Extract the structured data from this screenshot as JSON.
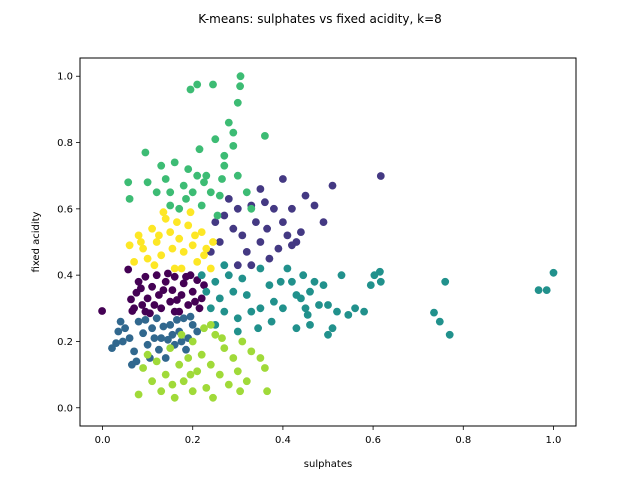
{
  "chart_data": {
    "type": "scatter",
    "title": "K-means: sulphates vs fixed acidity, k=8",
    "xlabel": "sulphates",
    "ylabel": "fixed acidity",
    "xlim": [
      -0.05,
      1.05
    ],
    "ylim": [
      -0.055,
      1.055
    ],
    "xticks": [
      "0.0",
      "0.2",
      "0.4",
      "0.6",
      "0.8",
      "1.0"
    ],
    "yticks": [
      "0.0",
      "0.2",
      "0.4",
      "0.6",
      "0.8",
      "1.0"
    ],
    "grid": false,
    "legend": "none",
    "series": [
      {
        "color": "#440154",
        "points": [
          [
            -0.001,
            0.292
          ],
          [
            0.057,
            0.417
          ],
          [
            0.063,
            0.327
          ],
          [
            0.066,
            0.292
          ],
          [
            0.075,
            0.347
          ],
          [
            0.08,
            0.38
          ],
          [
            0.088,
            0.31
          ],
          [
            0.095,
            0.395
          ],
          [
            0.1,
            0.33
          ],
          [
            0.105,
            0.285
          ],
          [
            0.11,
            0.365
          ],
          [
            0.12,
            0.4
          ],
          [
            0.125,
            0.34
          ],
          [
            0.13,
            0.3
          ],
          [
            0.14,
            0.38
          ],
          [
            0.15,
            0.32
          ],
          [
            0.155,
            0.355
          ],
          [
            0.16,
            0.395
          ],
          [
            0.17,
            0.29
          ],
          [
            0.175,
            0.34
          ],
          [
            0.18,
            0.375
          ],
          [
            0.19,
            0.31
          ],
          [
            0.195,
            0.4
          ],
          [
            0.2,
            0.35
          ],
          [
            0.21,
            0.385
          ],
          [
            0.215,
            0.3
          ],
          [
            0.22,
            0.33
          ],
          [
            0.085,
            0.36
          ],
          [
            0.115,
            0.31
          ],
          [
            0.135,
            0.355
          ],
          [
            0.145,
            0.405
          ],
          [
            0.165,
            0.325
          ],
          [
            0.185,
            0.395
          ],
          [
            0.205,
            0.32
          ],
          [
            0.095,
            0.29
          ],
          [
            0.16,
            0.29
          ],
          [
            0.225,
            0.37
          ],
          [
            0.07,
            0.3
          ]
        ]
      },
      {
        "color": "#443983",
        "points": [
          [
            0.27,
            0.58
          ],
          [
            0.29,
            0.54
          ],
          [
            0.3,
            0.6
          ],
          [
            0.31,
            0.52
          ],
          [
            0.32,
            0.47
          ],
          [
            0.33,
            0.61
          ],
          [
            0.34,
            0.56
          ],
          [
            0.35,
            0.5
          ],
          [
            0.36,
            0.62
          ],
          [
            0.37,
            0.45
          ],
          [
            0.38,
            0.6
          ],
          [
            0.39,
            0.48
          ],
          [
            0.4,
            0.56
          ],
          [
            0.41,
            0.52
          ],
          [
            0.42,
            0.6
          ],
          [
            0.43,
            0.5
          ],
          [
            0.44,
            0.53
          ],
          [
            0.45,
            0.64
          ],
          [
            0.47,
            0.61
          ],
          [
            0.49,
            0.56
          ],
          [
            0.51,
            0.67
          ],
          [
            0.617,
            0.699
          ],
          [
            0.4,
            0.69
          ],
          [
            0.33,
            0.43
          ],
          [
            0.3,
            0.43
          ],
          [
            0.26,
            0.5
          ],
          [
            0.35,
            0.66
          ],
          [
            0.24,
            0.47
          ],
          [
            0.28,
            0.63
          ],
          [
            0.365,
            0.54
          ],
          [
            0.42,
            0.49
          ],
          [
            0.25,
            0.56
          ]
        ]
      },
      {
        "color": "#31688e",
        "points": [
          [
            0.021,
            0.18
          ],
          [
            0.03,
            0.195
          ],
          [
            0.035,
            0.23
          ],
          [
            0.04,
            0.26
          ],
          [
            0.05,
            0.24
          ],
          [
            0.06,
            0.21
          ],
          [
            0.065,
            0.13
          ],
          [
            0.07,
            0.17
          ],
          [
            0.08,
            0.26
          ],
          [
            0.09,
            0.225
          ],
          [
            0.1,
            0.19
          ],
          [
            0.11,
            0.24
          ],
          [
            0.12,
            0.27
          ],
          [
            0.13,
            0.21
          ],
          [
            0.14,
            0.15
          ],
          [
            0.15,
            0.25
          ],
          [
            0.16,
            0.19
          ],
          [
            0.17,
            0.23
          ],
          [
            0.18,
            0.27
          ],
          [
            0.19,
            0.21
          ],
          [
            0.2,
            0.25
          ],
          [
            0.21,
            0.23
          ],
          [
            0.075,
            0.14
          ],
          [
            0.105,
            0.15
          ],
          [
            0.125,
            0.175
          ],
          [
            0.145,
            0.205
          ],
          [
            0.165,
            0.265
          ],
          [
            0.185,
            0.175
          ],
          [
            0.045,
            0.2
          ],
          [
            0.095,
            0.265
          ],
          [
            0.115,
            0.21
          ],
          [
            0.135,
            0.245
          ],
          [
            0.155,
            0.22
          ],
          [
            0.175,
            0.2
          ],
          [
            0.195,
            0.275
          ]
        ]
      },
      {
        "color": "#21918c",
        "points": [
          [
            0.22,
            0.4
          ],
          [
            0.23,
            0.35
          ],
          [
            0.24,
            0.3
          ],
          [
            0.25,
            0.38
          ],
          [
            0.26,
            0.33
          ],
          [
            0.27,
            0.29
          ],
          [
            0.28,
            0.4
          ],
          [
            0.29,
            0.35
          ],
          [
            0.3,
            0.27
          ],
          [
            0.31,
            0.39
          ],
          [
            0.32,
            0.34
          ],
          [
            0.33,
            0.29
          ],
          [
            0.35,
            0.3
          ],
          [
            0.37,
            0.37
          ],
          [
            0.38,
            0.32
          ],
          [
            0.4,
            0.3
          ],
          [
            0.42,
            0.38
          ],
          [
            0.43,
            0.34
          ],
          [
            0.44,
            0.33
          ],
          [
            0.45,
            0.3
          ],
          [
            0.46,
            0.35
          ],
          [
            0.47,
            0.38
          ],
          [
            0.48,
            0.31
          ],
          [
            0.49,
            0.37
          ],
          [
            0.5,
            0.31
          ],
          [
            0.52,
            0.29
          ],
          [
            0.53,
            0.4
          ],
          [
            0.545,
            0.28
          ],
          [
            0.56,
            0.3
          ],
          [
            0.58,
            0.29
          ],
          [
            0.595,
            0.37
          ],
          [
            0.603,
            0.4
          ],
          [
            0.615,
            0.41
          ],
          [
            0.617,
            0.38
          ],
          [
            0.735,
            0.287
          ],
          [
            0.748,
            0.26
          ],
          [
            0.76,
            0.38
          ],
          [
            0.77,
            0.22
          ],
          [
            0.967,
            0.355
          ],
          [
            0.985,
            0.355
          ],
          [
            1.0,
            0.407
          ],
          [
            0.41,
            0.42
          ],
          [
            0.46,
            0.25
          ],
          [
            0.43,
            0.24
          ],
          [
            0.375,
            0.26
          ],
          [
            0.345,
            0.24
          ],
          [
            0.395,
            0.38
          ],
          [
            0.5,
            0.22
          ],
          [
            0.25,
            0.25
          ],
          [
            0.3,
            0.23
          ],
          [
            0.35,
            0.42
          ],
          [
            0.27,
            0.43
          ],
          [
            0.51,
            0.24
          ],
          [
            0.455,
            0.28
          ],
          [
            0.445,
            0.4
          ]
        ]
      },
      {
        "color": "#3dbc74",
        "points": [
          [
            0.057,
            0.68
          ],
          [
            0.06,
            0.63
          ],
          [
            0.095,
            0.77
          ],
          [
            0.1,
            0.68
          ],
          [
            0.12,
            0.65
          ],
          [
            0.13,
            0.73
          ],
          [
            0.14,
            0.69
          ],
          [
            0.15,
            0.65
          ],
          [
            0.16,
            0.74
          ],
          [
            0.17,
            0.6
          ],
          [
            0.18,
            0.67
          ],
          [
            0.19,
            0.72
          ],
          [
            0.2,
            0.65
          ],
          [
            0.21,
            0.7
          ],
          [
            0.215,
            0.78
          ],
          [
            0.22,
            0.61
          ],
          [
            0.23,
            0.7
          ],
          [
            0.24,
            0.65
          ],
          [
            0.25,
            0.81
          ],
          [
            0.255,
            0.58
          ],
          [
            0.26,
            0.64
          ],
          [
            0.27,
            0.73
          ],
          [
            0.28,
            0.86
          ],
          [
            0.29,
            0.83
          ],
          [
            0.3,
            0.7
          ],
          [
            0.305,
            0.97
          ],
          [
            0.306,
            1.0
          ],
          [
            0.3,
            0.92
          ],
          [
            0.32,
            0.65
          ],
          [
            0.36,
            0.82
          ],
          [
            0.21,
            0.975
          ],
          [
            0.245,
            0.975
          ],
          [
            0.29,
            0.79
          ],
          [
            0.195,
            0.96
          ],
          [
            0.225,
            0.68
          ],
          [
            0.265,
            0.69
          ],
          [
            0.33,
            0.6
          ],
          [
            0.15,
            0.61
          ],
          [
            0.27,
            0.76
          ],
          [
            0.185,
            0.63
          ]
        ]
      },
      {
        "color": "#a0da39",
        "points": [
          [
            0.08,
            0.04
          ],
          [
            0.09,
            0.12
          ],
          [
            0.11,
            0.08
          ],
          [
            0.12,
            0.14
          ],
          [
            0.13,
            0.05
          ],
          [
            0.14,
            0.1
          ],
          [
            0.15,
            0.18
          ],
          [
            0.16,
            0.03
          ],
          [
            0.17,
            0.13
          ],
          [
            0.18,
            0.08
          ],
          [
            0.19,
            0.15
          ],
          [
            0.2,
            0.2
          ],
          [
            0.21,
            0.11
          ],
          [
            0.22,
            0.16
          ],
          [
            0.23,
            0.06
          ],
          [
            0.24,
            0.13
          ],
          [
            0.245,
            0.03
          ],
          [
            0.25,
            0.22
          ],
          [
            0.26,
            0.1
          ],
          [
            0.27,
            0.18
          ],
          [
            0.28,
            0.07
          ],
          [
            0.29,
            0.15
          ],
          [
            0.3,
            0.11
          ],
          [
            0.31,
            0.2
          ],
          [
            0.32,
            0.08
          ],
          [
            0.35,
            0.15
          ],
          [
            0.36,
            0.12
          ],
          [
            0.365,
            0.05
          ],
          [
            0.33,
            0.17
          ],
          [
            0.24,
            0.25
          ],
          [
            0.1,
            0.16
          ],
          [
            0.2,
            0.05
          ],
          [
            0.265,
            0.21
          ],
          [
            0.175,
            0.22
          ],
          [
            0.225,
            0.24
          ],
          [
            0.155,
            0.07
          ],
          [
            0.305,
            0.05
          ],
          [
            0.195,
            0.1
          ]
        ]
      },
      {
        "color": "#fde725",
        "points": [
          [
            0.06,
            0.49
          ],
          [
            0.07,
            0.44
          ],
          [
            0.08,
            0.52
          ],
          [
            0.09,
            0.48
          ],
          [
            0.1,
            0.45
          ],
          [
            0.11,
            0.54
          ],
          [
            0.12,
            0.5
          ],
          [
            0.13,
            0.46
          ],
          [
            0.14,
            0.57
          ],
          [
            0.15,
            0.53
          ],
          [
            0.16,
            0.42
          ],
          [
            0.17,
            0.51
          ],
          [
            0.18,
            0.47
          ],
          [
            0.19,
            0.55
          ],
          [
            0.2,
            0.49
          ],
          [
            0.21,
            0.44
          ],
          [
            0.22,
            0.53
          ],
          [
            0.23,
            0.48
          ],
          [
            0.24,
            0.42
          ],
          [
            0.245,
            0.5
          ],
          [
            0.115,
            0.43
          ],
          [
            0.135,
            0.59
          ],
          [
            0.155,
            0.48
          ],
          [
            0.175,
            0.42
          ],
          [
            0.195,
            0.59
          ],
          [
            0.205,
            0.52
          ],
          [
            0.085,
            0.5
          ],
          [
            0.125,
            0.52
          ],
          [
            0.165,
            0.56
          ],
          [
            0.225,
            0.46
          ]
        ]
      }
    ]
  }
}
